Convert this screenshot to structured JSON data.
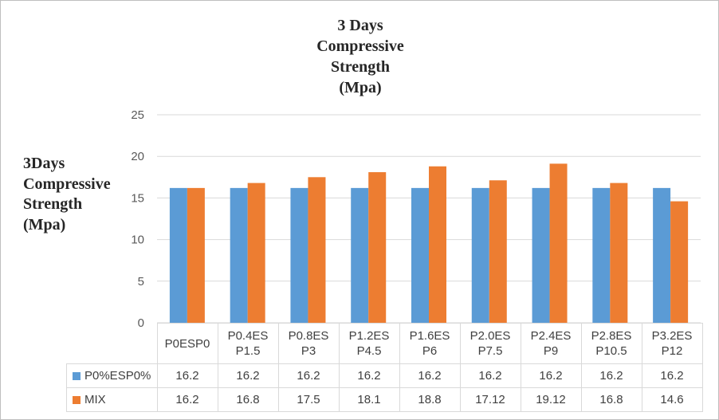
{
  "chart_data": {
    "type": "bar",
    "title": "3 Days Compressive Strength (Mpa)",
    "title_lines": [
      "3 Days",
      "Compressive",
      "Strength",
      "(Mpa)"
    ],
    "ylabel": "3Days Compressive Strength (Mpa)",
    "ylabel_lines": [
      "3Days",
      "Compressive",
      "Strength",
      "(Mpa)"
    ],
    "xlabel": "",
    "ylim": [
      0,
      25
    ],
    "yticks": [
      "0",
      "5",
      "10",
      "15",
      "20",
      "25"
    ],
    "grid": true,
    "legend": "data-table",
    "categories": [
      "P0ESP0",
      "P0.4ES P1.5",
      "P0.8ES P3",
      "P1.2ES P4.5",
      "P1.6ES P6",
      "P2.0ES P7.5",
      "P2.4ES P9",
      "P2.8ES P10.5",
      "P3.2ES P12"
    ],
    "category_lines": [
      [
        "P0ESP0"
      ],
      [
        "P0.4ES",
        "P1.5"
      ],
      [
        "P0.8ES",
        "P3"
      ],
      [
        "P1.2ES",
        "P4.5"
      ],
      [
        "P1.6ES",
        "P6"
      ],
      [
        "P2.0ES",
        "P7.5"
      ],
      [
        "P2.4ES",
        "P9"
      ],
      [
        "P2.8ES",
        "P10.5"
      ],
      [
        "P3.2ES",
        "P12"
      ]
    ],
    "series": [
      {
        "name": "P0%ESP0%",
        "color": "#5b9bd5",
        "values": [
          16.2,
          16.2,
          16.2,
          16.2,
          16.2,
          16.2,
          16.2,
          16.2,
          16.2
        ],
        "labels": [
          "16.2",
          "16.2",
          "16.2",
          "16.2",
          "16.2",
          "16.2",
          "16.2",
          "16.2",
          "16.2"
        ]
      },
      {
        "name": "MIX",
        "color": "#ed7d31",
        "values": [
          16.2,
          16.8,
          17.5,
          18.1,
          18.8,
          17.12,
          19.12,
          16.8,
          14.6
        ],
        "labels": [
          "16.2",
          "16.8",
          "17.5",
          "18.1",
          "18.8",
          "17.12",
          "19.12",
          "16.8",
          "14.6"
        ]
      }
    ]
  }
}
